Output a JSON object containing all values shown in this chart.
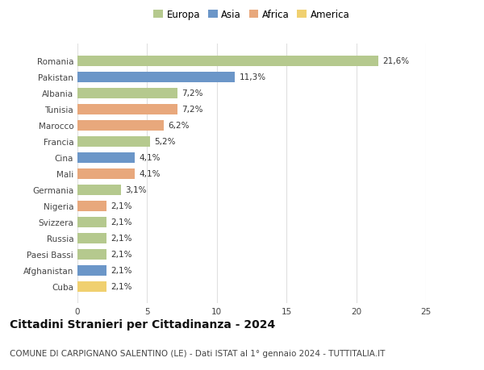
{
  "categories": [
    "Romania",
    "Pakistan",
    "Albania",
    "Tunisia",
    "Marocco",
    "Francia",
    "Cina",
    "Mali",
    "Germania",
    "Nigeria",
    "Svizzera",
    "Russia",
    "Paesi Bassi",
    "Afghanistan",
    "Cuba"
  ],
  "values": [
    21.6,
    11.3,
    7.2,
    7.2,
    6.2,
    5.2,
    4.1,
    4.1,
    3.1,
    2.1,
    2.1,
    2.1,
    2.1,
    2.1,
    2.1
  ],
  "labels": [
    "21,6%",
    "11,3%",
    "7,2%",
    "7,2%",
    "6,2%",
    "5,2%",
    "4,1%",
    "4,1%",
    "3,1%",
    "2,1%",
    "2,1%",
    "2,1%",
    "2,1%",
    "2,1%",
    "2,1%"
  ],
  "colors": [
    "#b5c98e",
    "#6b96c8",
    "#b5c98e",
    "#e8a87c",
    "#e8a87c",
    "#b5c98e",
    "#6b96c8",
    "#e8a87c",
    "#b5c98e",
    "#e8a87c",
    "#b5c98e",
    "#b5c98e",
    "#b5c98e",
    "#6b96c8",
    "#f0d070"
  ],
  "legend": {
    "Europa": "#b5c98e",
    "Asia": "#6b96c8",
    "Africa": "#e8a87c",
    "America": "#f0d070"
  },
  "xlim": [
    0,
    25
  ],
  "xticks": [
    0,
    5,
    10,
    15,
    20,
    25
  ],
  "title": "Cittadini Stranieri per Cittadinanza - 2024",
  "subtitle": "COMUNE DI CARPIGNANO SALENTINO (LE) - Dati ISTAT al 1° gennaio 2024 - TUTTITALIA.IT",
  "background_color": "#ffffff",
  "grid_color": "#e0e0e0",
  "bar_height": 0.65,
  "label_fontsize": 7.5,
  "ytick_fontsize": 7.5,
  "xtick_fontsize": 7.5,
  "title_fontsize": 10,
  "subtitle_fontsize": 7.5,
  "legend_fontsize": 8.5
}
